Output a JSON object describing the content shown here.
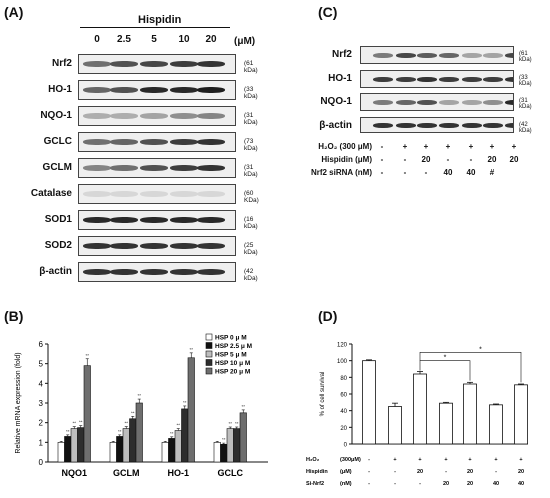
{
  "panel_a": {
    "label": "(A)",
    "treatment": "Hispidin",
    "unit": "(μM)",
    "doses": [
      "0",
      "2.5",
      "5",
      "10",
      "20"
    ],
    "rows": [
      {
        "name": "Nrf2",
        "kda": "(61 kDa)",
        "intensity": [
          0.55,
          0.7,
          0.75,
          0.8,
          0.85
        ]
      },
      {
        "name": "HO-1",
        "kda": "(33 kDa)",
        "intensity": [
          0.6,
          0.7,
          0.9,
          0.9,
          0.95
        ]
      },
      {
        "name": "NQO-1",
        "kda": "(31 kDa)",
        "intensity": [
          0.25,
          0.25,
          0.3,
          0.4,
          0.45
        ]
      },
      {
        "name": "GCLC",
        "kda": "(73 kDa)",
        "intensity": [
          0.55,
          0.6,
          0.7,
          0.8,
          0.85
        ]
      },
      {
        "name": "GCLM",
        "kda": "(31 kDa)",
        "intensity": [
          0.45,
          0.55,
          0.7,
          0.8,
          0.85
        ]
      },
      {
        "name": "Catalase",
        "kda": "(60 KDa)",
        "intensity": [
          0.05,
          0.05,
          0.05,
          0.05,
          0.05
        ]
      },
      {
        "name": "SOD1",
        "kda": "(16 kDa)",
        "intensity": [
          0.9,
          0.9,
          0.9,
          0.9,
          0.9
        ]
      },
      {
        "name": "SOD2",
        "kda": "(25 kDa)",
        "intensity": [
          0.85,
          0.85,
          0.85,
          0.85,
          0.85
        ]
      },
      {
        "name": "β-actin",
        "kda": "(42 kDa)",
        "intensity": [
          0.85,
          0.85,
          0.85,
          0.85,
          0.85
        ]
      }
    ]
  },
  "panel_c": {
    "label": "(C)",
    "rows": [
      {
        "name": "Nrf2",
        "kda": "(61 kDa)",
        "intensity": [
          0.5,
          0.75,
          0.65,
          0.6,
          0.3,
          0.3,
          0.75
        ]
      },
      {
        "name": "HO-1",
        "kda": "(33 kDa)",
        "intensity": [
          0.8,
          0.8,
          0.85,
          0.8,
          0.8,
          0.8,
          0.85
        ]
      },
      {
        "name": "NQO-1",
        "kda": "(31 kDa)",
        "intensity": [
          0.5,
          0.6,
          0.7,
          0.3,
          0.3,
          0.4,
          0.9
        ]
      },
      {
        "name": "β-actin",
        "kda": "(42 kDa)",
        "intensity": [
          0.85,
          0.85,
          0.85,
          0.85,
          0.85,
          0.85,
          0.85
        ]
      }
    ],
    "conditions": [
      {
        "label": "H₂O₂  (300 μM)",
        "values": [
          "-",
          "+",
          "+",
          "+",
          "+",
          "+",
          "+"
        ]
      },
      {
        "label": "Hispidin   (μM)",
        "values": [
          "-",
          "-",
          "20",
          "-",
          "-",
          "20",
          "20"
        ]
      },
      {
        "label": "Nrf2 siRNA (nM)",
        "values": [
          "-",
          "-",
          "-",
          "40",
          "40",
          "#",
          ""
        ]
      }
    ]
  },
  "panel_b": {
    "label": "(B)",
    "chart_data": {
      "type": "bar",
      "title": "",
      "xlabel": "",
      "ylabel": "Relative mRNA expression (fold)",
      "ylim": [
        0,
        6
      ],
      "yticks": [
        "0",
        "1",
        "2",
        "3",
        "4",
        "5",
        "6"
      ],
      "categories": [
        "NQO1",
        "GCLM",
        "HO-1",
        "GCLC"
      ],
      "series": [
        {
          "name": "HSP  0 μ  M",
          "color": "#ffffff",
          "values": [
            1.0,
            1.0,
            1.0,
            1.0
          ],
          "errors": [
            0.05,
            0.05,
            0.05,
            0.05
          ]
        },
        {
          "name": "HSP  2.5 μ  M",
          "color": "#111111",
          "values": [
            1.3,
            1.3,
            1.2,
            0.9
          ],
          "errors": [
            0.08,
            0.08,
            0.08,
            0.06
          ]
        },
        {
          "name": "HSP   5 μ  M",
          "color": "#bdbdbd",
          "values": [
            1.7,
            1.7,
            1.6,
            1.7
          ],
          "errors": [
            0.1,
            0.1,
            0.1,
            0.08
          ]
        },
        {
          "name": "HSP  10 μ  M",
          "color": "#2d2d2d",
          "values": [
            1.75,
            2.2,
            2.7,
            1.7
          ],
          "errors": [
            0.1,
            0.12,
            0.15,
            0.08
          ]
        },
        {
          "name": "HSP  20 μ  M",
          "color": "#6e6e6e",
          "values": [
            4.9,
            3.0,
            5.3,
            2.5
          ],
          "errors": [
            0.35,
            0.2,
            0.25,
            0.15
          ]
        }
      ],
      "annotations": [
        "**"
      ]
    }
  },
  "panel_d": {
    "label": "(D)",
    "chart_data": {
      "type": "bar",
      "title": "",
      "xlabel": "",
      "ylabel": "% of cell survival",
      "ylim": [
        0,
        120
      ],
      "yticks": [
        "0",
        "20",
        "40",
        "60",
        "80",
        "100",
        "120"
      ],
      "values": [
        100,
        45,
        84,
        49,
        72,
        47,
        71
      ],
      "errors": [
        1,
        4,
        3,
        1,
        2,
        1,
        1
      ],
      "annotations": [
        "*",
        "*"
      ],
      "conditions": [
        {
          "label": "H₂O₂",
          "unit": "(300μM)",
          "values": [
            "-",
            "+",
            "+",
            "+",
            "+",
            "+",
            "+"
          ]
        },
        {
          "label": "Hispidin",
          "unit": "(μM)",
          "values": [
            "-",
            "-",
            "20",
            "-",
            "20",
            "-",
            "20"
          ]
        },
        {
          "label": "Si-Nrf2",
          "unit": "(nM)",
          "values": [
            "-",
            "-",
            "-",
            "20",
            "20",
            "40",
            "40"
          ]
        }
      ]
    }
  }
}
